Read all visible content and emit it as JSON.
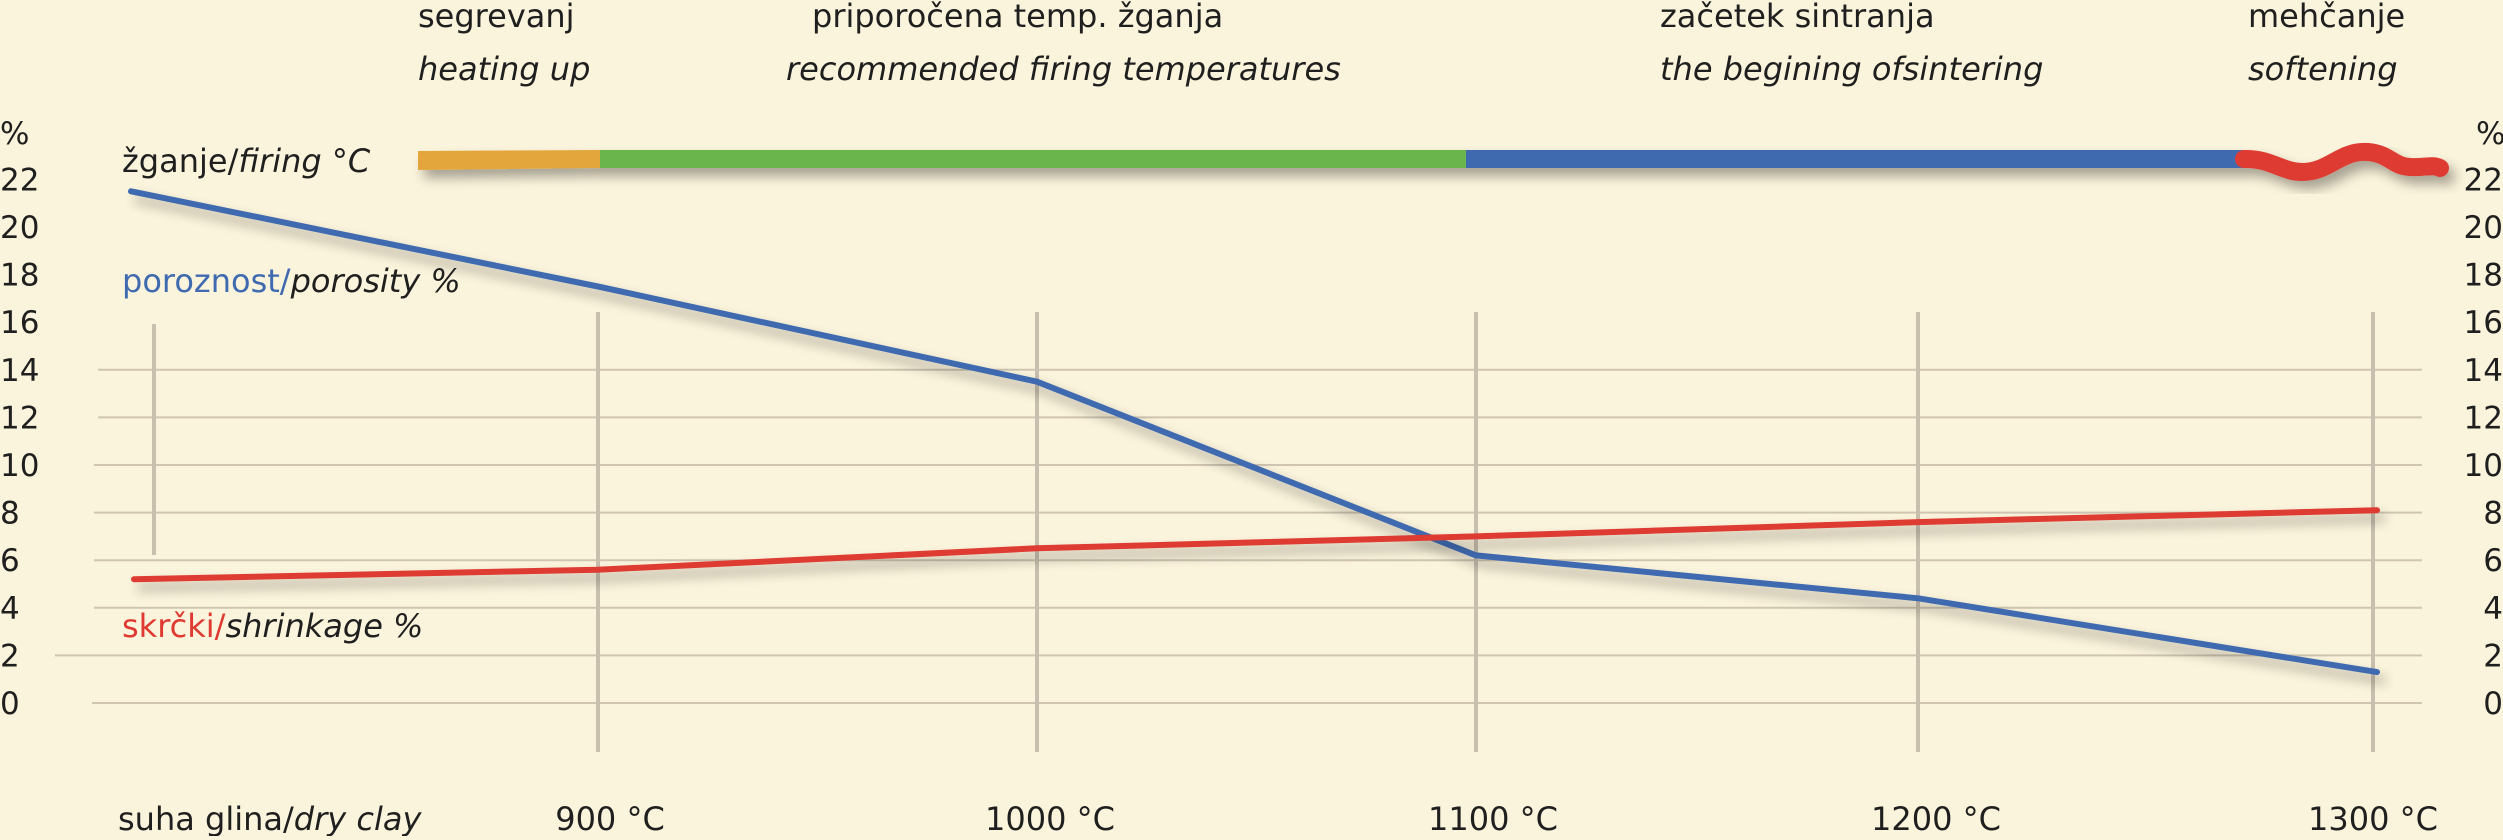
{
  "chart_data": {
    "type": "line",
    "stages": [
      {
        "name": "segrevanj",
        "name_en": "heating up",
        "color": "#e3a63c"
      },
      {
        "name": "priporočena temp. žganja",
        "name_en": "recommended firing temperatures",
        "color": "#6bb64e"
      },
      {
        "name": "začetek sintranja",
        "name_en": "the begining ofsintering",
        "color": "#3f6ab0"
      },
      {
        "name": "mehčanje",
        "name_en": "softening",
        "color": "#de3a32"
      }
    ],
    "firing_label": {
      "sl": "žganje/",
      "en": "firing °C"
    },
    "categories": [
      "suha glina/dry clay",
      "900 °C",
      "1000 °C",
      "1100 °C",
      "1200 °C",
      "1300 °C"
    ],
    "category_parts": [
      {
        "sl": "suha glina/",
        "en": "dry clay"
      },
      {
        "sl": "900 °C",
        "en": ""
      },
      {
        "sl": "1000 °C",
        "en": ""
      },
      {
        "sl": "1100 °C",
        "en": ""
      },
      {
        "sl": "1200 °C",
        "en": ""
      },
      {
        "sl": "1300 °C",
        "en": ""
      }
    ],
    "series": [
      {
        "key": "porosity",
        "name_sl": "poroznost/",
        "name_en": "porosity %",
        "color": "#3f6ab0",
        "values": [
          21.5,
          17.5,
          13.5,
          6.2,
          4.4,
          1.3
        ]
      },
      {
        "key": "shrinkage",
        "name_sl": "skrčki/",
        "name_en": "shrinkage %",
        "color": "#de3a32",
        "values": [
          5.2,
          5.6,
          6.5,
          7.0,
          7.6,
          8.1
        ]
      }
    ],
    "ylabel": "%",
    "yticks": [
      22,
      20,
      18,
      16,
      14,
      12,
      10,
      8,
      6,
      4,
      2,
      0
    ],
    "ylim": [
      0,
      22
    ],
    "grid": true
  }
}
